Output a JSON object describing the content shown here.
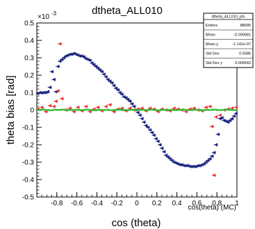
{
  "chart_data": {
    "type": "scatter",
    "title": "dtheta_ALL010",
    "xlabel": "cos (theta)",
    "ylabel": "theta bias [rad]",
    "x_axis_annotation": "cos(theta) (MC)",
    "y_exponent_label": "×10",
    "y_exponent_power": "-3",
    "xlim": [
      -1,
      1
    ],
    "ylim": [
      -0.5,
      0.5
    ],
    "x_ticks": [
      "-0.8",
      "-0.6",
      "-0.4",
      "-0.2",
      "0",
      "0.2",
      "0.4",
      "0.6",
      "0.8",
      "1"
    ],
    "y_ticks": [
      "0.5",
      "0.4",
      "0.3",
      "0.2",
      "0.1",
      "0",
      "-0.1",
      "-0.2",
      "-0.3",
      "-0.4",
      "-0.5"
    ],
    "stats_box": {
      "title": "dtheta_ALL010_pfx",
      "rows": [
        {
          "label": "Entries",
          "value": "88095"
        },
        {
          "label": "Mean",
          "value": "-0.000681"
        },
        {
          "label": "Mean y",
          "value": "-1.141e-07"
        },
        {
          "label": "Std Dev",
          "value": "0.5586"
        },
        {
          "label": "Std Dev y",
          "value": "0.000543"
        }
      ]
    },
    "series": [
      {
        "color": "#1a237e",
        "x": [
          -0.99,
          -0.97,
          -0.95,
          -0.93,
          -0.91,
          -0.89,
          -0.87,
          -0.85,
          -0.83,
          -0.81,
          -0.79,
          -0.77,
          -0.75,
          -0.73,
          -0.71,
          -0.69,
          -0.67,
          -0.65,
          -0.63,
          -0.61,
          -0.59,
          -0.57,
          -0.55,
          -0.53,
          -0.51,
          -0.49,
          -0.47,
          -0.45,
          -0.43,
          -0.41,
          -0.39,
          -0.37,
          -0.35,
          -0.33,
          -0.31,
          -0.29,
          -0.27,
          -0.25,
          -0.23,
          -0.21,
          -0.19,
          -0.17,
          -0.15,
          -0.13,
          -0.11,
          -0.09,
          -0.07,
          -0.05,
          -0.03,
          -0.01,
          0.01,
          0.03,
          0.05,
          0.07,
          0.09,
          0.11,
          0.13,
          0.15,
          0.17,
          0.19,
          0.21,
          0.23,
          0.25,
          0.27,
          0.29,
          0.31,
          0.33,
          0.35,
          0.37,
          0.39,
          0.41,
          0.43,
          0.45,
          0.47,
          0.49,
          0.51,
          0.53,
          0.55,
          0.57,
          0.59,
          0.61,
          0.63,
          0.65,
          0.67,
          0.69,
          0.71,
          0.73,
          0.75,
          0.77,
          0.79,
          0.81,
          0.83,
          0.85,
          0.87,
          0.89,
          0.91,
          0.93,
          0.95,
          0.97,
          0.99
        ],
        "y": [
          0.095,
          0.1,
          0.098,
          0.1,
          0.1,
          0.105,
          0.13,
          0.22,
          0.175,
          0.105,
          0.25,
          0.28,
          0.29,
          0.3,
          0.31,
          0.315,
          0.32,
          0.32,
          0.325,
          0.32,
          0.315,
          0.31,
          0.31,
          0.305,
          0.295,
          0.29,
          0.285,
          0.27,
          0.26,
          0.25,
          0.24,
          0.23,
          0.22,
          0.205,
          0.19,
          0.175,
          0.165,
          0.155,
          0.14,
          0.125,
          0.115,
          0.1,
          0.09,
          0.075,
          0.07,
          0.06,
          0.05,
          0.035,
          0.02,
          0.0,
          -0.015,
          -0.03,
          -0.05,
          -0.07,
          -0.09,
          -0.1,
          -0.115,
          -0.13,
          -0.145,
          -0.165,
          -0.18,
          -0.2,
          -0.22,
          -0.24,
          -0.26,
          -0.27,
          -0.28,
          -0.29,
          -0.3,
          -0.305,
          -0.31,
          -0.315,
          -0.315,
          -0.32,
          -0.32,
          -0.32,
          -0.325,
          -0.325,
          -0.325,
          -0.325,
          -0.32,
          -0.32,
          -0.315,
          -0.31,
          -0.3,
          -0.29,
          -0.28,
          -0.265,
          -0.245,
          -0.2,
          -0.14,
          -0.05,
          -0.045,
          -0.06,
          -0.065,
          -0.07,
          -0.06,
          -0.05,
          -0.035,
          -0.02
        ]
      },
      {
        "color": "#e53935",
        "x": [
          -0.99,
          -0.95,
          -0.91,
          -0.87,
          -0.83,
          -0.81,
          -0.79,
          -0.77,
          -0.75,
          -0.71,
          -0.67,
          -0.63,
          -0.59,
          -0.55,
          -0.51,
          -0.47,
          -0.43,
          -0.39,
          -0.35,
          -0.31,
          -0.27,
          -0.23,
          -0.19,
          -0.15,
          -0.11,
          -0.07,
          -0.03,
          0.01,
          0.05,
          0.09,
          0.13,
          0.17,
          0.21,
          0.25,
          0.29,
          0.33,
          0.37,
          0.41,
          0.45,
          0.49,
          0.53,
          0.57,
          0.61,
          0.65,
          0.69,
          0.73,
          0.75,
          0.77,
          0.79,
          0.83,
          0.87,
          0.91,
          0.95,
          0.99
        ],
        "y": [
          0.005,
          0.015,
          -0.01,
          0.025,
          0.02,
          0.05,
          0.11,
          0.38,
          0.065,
          0.0,
          0.01,
          -0.01,
          0.015,
          -0.005,
          0.02,
          -0.01,
          0.005,
          0.015,
          -0.005,
          0.02,
          0.03,
          -0.01,
          0.005,
          0.01,
          -0.005,
          0.01,
          0.0,
          0.005,
          0.01,
          -0.005,
          0.01,
          0.005,
          -0.01,
          0.005,
          0.0,
          -0.005,
          0.01,
          0.005,
          0.0,
          -0.01,
          0.005,
          0.01,
          0.0,
          -0.005,
          0.015,
          0.02,
          -0.095,
          -0.375,
          -0.04,
          -0.03,
          0.0,
          0.005,
          0.01,
          0.015
        ]
      },
      {
        "color": "#2eb82e",
        "x": [
          -0.98,
          -0.94,
          -0.9,
          -0.86,
          -0.82,
          -0.78,
          -0.74,
          -0.7,
          -0.66,
          -0.62,
          -0.58,
          -0.54,
          -0.5,
          -0.46,
          -0.42,
          -0.38,
          -0.34,
          -0.3,
          -0.26,
          -0.22,
          -0.18,
          -0.14,
          -0.1,
          -0.06,
          -0.02,
          0.02,
          0.06,
          0.1,
          0.14,
          0.18,
          0.22,
          0.26,
          0.3,
          0.34,
          0.38,
          0.42,
          0.46,
          0.5,
          0.54,
          0.58,
          0.62,
          0.66,
          0.7,
          0.74,
          0.78,
          0.82,
          0.86,
          0.9,
          0.94,
          0.98
        ],
        "y": [
          0.0,
          0.002,
          0.0,
          -0.002,
          0.001,
          0.0,
          0.002,
          -0.001,
          0.0,
          0.001,
          0.0,
          -0.001,
          0.002,
          0.0,
          -0.002,
          0.001,
          0.0,
          0.001,
          -0.001,
          0.0,
          0.002,
          0.0,
          -0.001,
          0.001,
          0.0,
          0.0,
          0.001,
          -0.001,
          0.002,
          0.0,
          -0.002,
          0.001,
          0.0,
          0.001,
          -0.001,
          0.0,
          0.002,
          0.0,
          -0.001,
          0.001,
          0.0,
          -0.002,
          0.001,
          0.0,
          0.002,
          -0.001,
          0.0,
          0.001,
          0.0,
          -0.001
        ]
      }
    ]
  }
}
